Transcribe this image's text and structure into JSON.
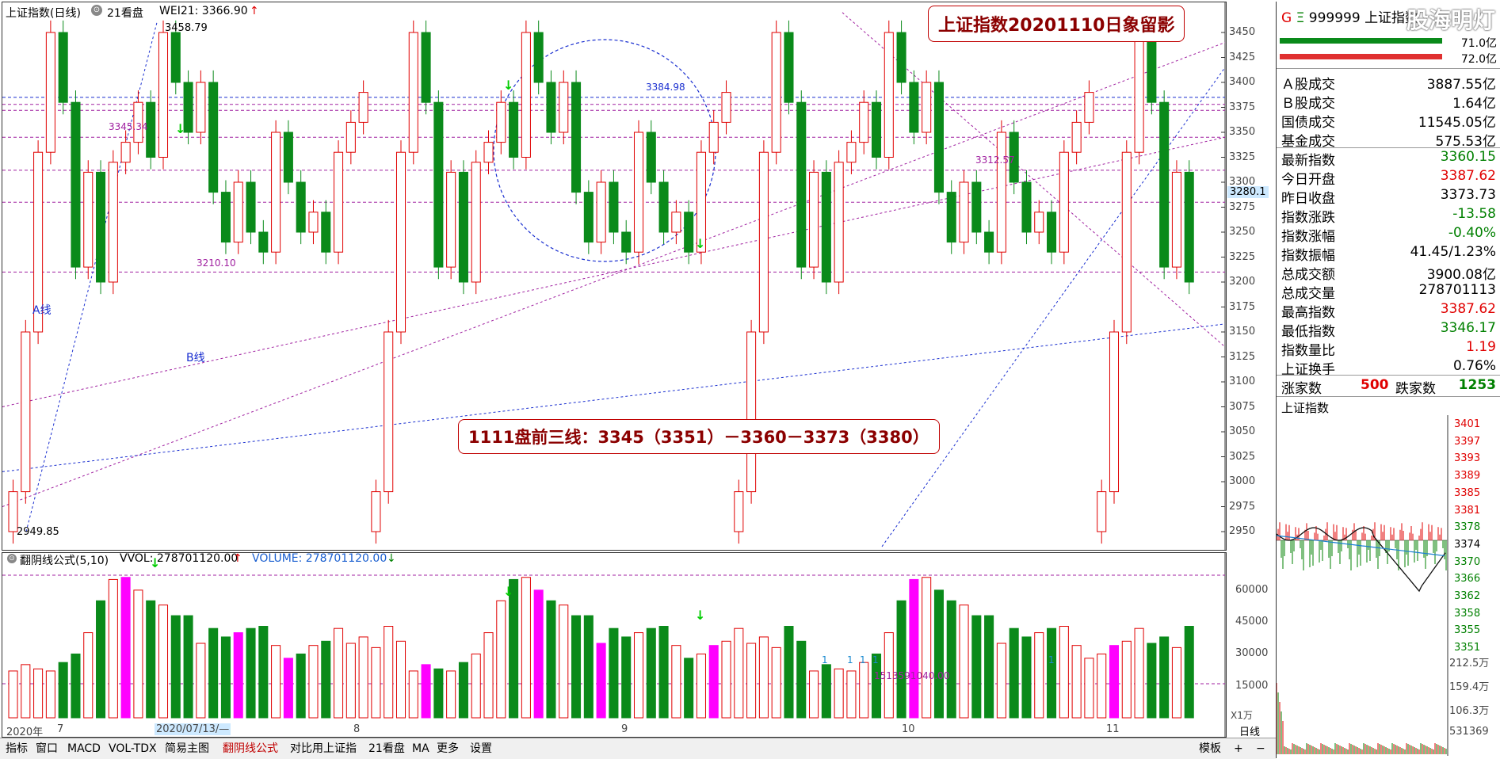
{
  "watermark": "股海明灯",
  "main_chart": {
    "title": "上证指数(日线)",
    "title_icon": "clock-icon",
    "period_label": "21看盘",
    "indicator_text": "WEI21: 3366.90",
    "indicator_arrow": "↑",
    "annotation_title": "上证指数20201110日象留影",
    "annotation_lines": "1111盘前三线：3345（3351）－3360－3373（3380）",
    "labels": {
      "high": "3458.79",
      "low": "2949.85",
      "l3345": "3345.34",
      "l3210": "3210.10",
      "l3384": "3384.98",
      "l3312": "3312.57",
      "a_line": "A线",
      "b_line": "B线",
      "current_marker": "3280.1"
    },
    "price_axis": [
      "3450",
      "3425",
      "3400",
      "3375",
      "3350",
      "3325",
      "3300",
      "3275",
      "3250",
      "3225",
      "3200",
      "3175",
      "3150",
      "3125",
      "3100",
      "3075",
      "3050",
      "3025",
      "3000",
      "2975",
      "2950"
    ],
    "date_axis": [
      {
        "label": "2020年"
      },
      {
        "label": "7"
      },
      {
        "label": "2020/07/13/—"
      },
      {
        "label": "8"
      },
      {
        "label": "9"
      },
      {
        "label": "10"
      },
      {
        "label": "11"
      }
    ],
    "period_name": "日线"
  },
  "vol_chart": {
    "title": "翻阴线公式(5,10)",
    "vvol_text": "VVOL: 278701120.00",
    "vvol_arrow": "↑",
    "volume_text": "VOLUME: 278701120.00",
    "volume_arrow": "↓",
    "axis": [
      "60000",
      "45000",
      "30000",
      "15000"
    ],
    "unit": "X1万",
    "overlay_label": "1513591040.00",
    "count_marks": [
      "1",
      "1",
      "1",
      "1",
      "1"
    ]
  },
  "tabs": [
    "指标",
    "窗口",
    "MACD",
    "VOL-TDX",
    "简易主图",
    "翻阴线公式",
    "对比用上证指",
    "21看盘",
    "MA",
    "更多",
    "设置"
  ],
  "active_tab": "翻阴线公式",
  "tab_right": [
    "模板",
    "+",
    "−"
  ],
  "right_panel": {
    "code": "999999",
    "name": "上证指数",
    "g_label": "G",
    "e_label": "Ξ",
    "bar_values": [
      "71.0亿",
      "72.0亿"
    ],
    "rows": [
      {
        "k": "Ａ股成交",
        "v": "3887.55亿",
        "c": "black"
      },
      {
        "k": "Ｂ股成交",
        "v": "1.64亿",
        "c": "black"
      },
      {
        "k": "国债成交",
        "v": "11545.05亿",
        "c": "black"
      },
      {
        "k": "基金成交",
        "v": "575.53亿",
        "c": "black"
      },
      {
        "k": "最新指数",
        "v": "3360.15",
        "c": "green"
      },
      {
        "k": "今日开盘",
        "v": "3387.62",
        "c": "red"
      },
      {
        "k": "昨日收盘",
        "v": "3373.73",
        "c": "black"
      },
      {
        "k": "指数涨跌",
        "v": "-13.58",
        "c": "green"
      },
      {
        "k": "指数涨幅",
        "v": "-0.40%",
        "c": "green"
      },
      {
        "k": "指数振幅",
        "v": "41.45/1.23%",
        "c": "black"
      },
      {
        "k": "总成交额",
        "v": "3900.08亿",
        "c": "black"
      },
      {
        "k": "总成交量",
        "v": "278701113",
        "c": "black"
      },
      {
        "k": "最高指数",
        "v": "3387.62",
        "c": "red"
      },
      {
        "k": "最低指数",
        "v": "3346.17",
        "c": "green"
      },
      {
        "k": "指数量比",
        "v": "1.19",
        "c": "red"
      },
      {
        "k": "上证换手",
        "v": "0.76%",
        "c": "black"
      }
    ],
    "updown": {
      "up_label": "涨家数",
      "up_value": "500",
      "down_label": "跌家数",
      "down_value": "1253"
    },
    "mini_title": "上证指数",
    "mini_axis": [
      "3401",
      "3397",
      "3393",
      "3389",
      "3385",
      "3381",
      "3378",
      "3374",
      "3370",
      "3366",
      "3362",
      "3358",
      "3355",
      "3351"
    ],
    "mini_vol_axis": [
      "212.5万",
      "159.4万",
      "106.3万",
      "531369"
    ]
  },
  "colors": {
    "up": "#e00000",
    "down": "#0a8a1a",
    "magenta": "#ff00ff",
    "blue": "#1a2fd0",
    "purple": "#a020a0"
  },
  "chart_data": {
    "type": "candlestick",
    "title": "上证指数(日线)",
    "candles_sample": [
      {
        "o": 2950,
        "c": 2990
      },
      {
        "o": 2990,
        "c": 3150
      },
      {
        "o": 3150,
        "c": 3330
      },
      {
        "o": 3330,
        "c": 3450
      },
      {
        "o": 3450,
        "c": 3380
      },
      {
        "o": 3380,
        "c": 3215
      },
      {
        "o": 3215,
        "c": 3310
      },
      {
        "o": 3310,
        "c": 3200
      },
      {
        "o": 3200,
        "c": 3320
      },
      {
        "o": 3320,
        "c": 3340
      },
      {
        "o": 3340,
        "c": 3380
      },
      {
        "o": 3380,
        "c": 3325
      },
      {
        "o": 3325,
        "c": 3450
      },
      {
        "o": 3450,
        "c": 3400
      },
      {
        "o": 3400,
        "c": 3350
      },
      {
        "o": 3350,
        "c": 3400
      },
      {
        "o": 3400,
        "c": 3290
      },
      {
        "o": 3290,
        "c": 3240
      },
      {
        "o": 3240,
        "c": 3300
      },
      {
        "o": 3300,
        "c": 3250
      },
      {
        "o": 3250,
        "c": 3230
      },
      {
        "o": 3230,
        "c": 3350
      },
      {
        "o": 3350,
        "c": 3300
      },
      {
        "o": 3300,
        "c": 3250
      },
      {
        "o": 3250,
        "c": 3270
      },
      {
        "o": 3270,
        "c": 3230
      },
      {
        "o": 3230,
        "c": 3330
      },
      {
        "o": 3330,
        "c": 3360
      },
      {
        "o": 3360,
        "c": 3390
      }
    ],
    "ylim": [
      2950,
      3450
    ]
  }
}
